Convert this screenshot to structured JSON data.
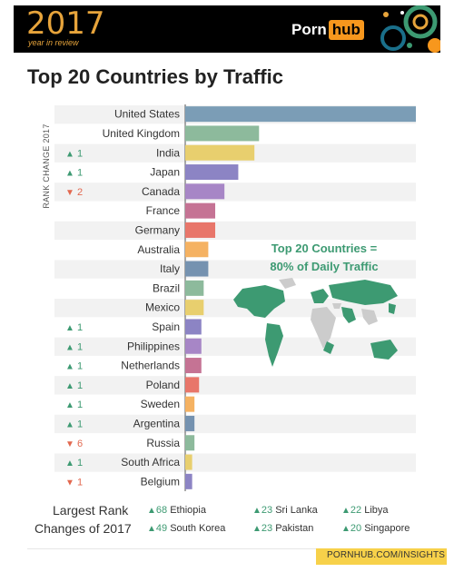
{
  "header": {
    "year": "2017",
    "subtitle": "year in review",
    "brand_left": "Porn",
    "brand_right": "hub",
    "brand_color": "#f7971d",
    "year_color": "#e7a43b",
    "deco_colors": [
      "#3d9a72",
      "#1a6f8a",
      "#e7a43b",
      "#f7971d"
    ]
  },
  "title": "Top 20 Countries by Traffic",
  "rank_axis_label": "RANK CHANGE 2017",
  "map_label": {
    "line1": "Top 20 Countries =",
    "line2": "80% of Daily Traffic",
    "map_color": "#3d9a72",
    "other_color": "#cccccc"
  },
  "chart_data": {
    "type": "bar",
    "orientation": "horizontal",
    "title": "Top 20 Countries by Traffic",
    "grid": false,
    "categories": [
      "United States",
      "United Kingdom",
      "India",
      "Japan",
      "Canada",
      "France",
      "Germany",
      "Australia",
      "Italy",
      "Brazil",
      "Mexico",
      "Spain",
      "Philippines",
      "Netherlands",
      "Poland",
      "Sweden",
      "Argentina",
      "Russia",
      "South Africa",
      "Belgium"
    ],
    "values": [
      100,
      32,
      30,
      23,
      17,
      13,
      13,
      10,
      10,
      8,
      8,
      7,
      7,
      7,
      6,
      4,
      4,
      4,
      3,
      3
    ],
    "colors": [
      "#7b9db6",
      "#8dba9c",
      "#e8cf6e",
      "#8c84c4",
      "#a786c6",
      "#c57394",
      "#e8766a",
      "#f5b262",
      "#7592b0",
      "#8dba9c",
      "#e8cf6e",
      "#8c84c4",
      "#a786c6",
      "#c57394",
      "#e8766a",
      "#f5b262",
      "#7592b0",
      "#8dba9c",
      "#e8cf6e",
      "#8c84c4"
    ],
    "rank_change": [
      "",
      "",
      "1",
      "1",
      "2",
      "",
      "",
      "",
      "",
      "",
      "",
      "1",
      "1",
      "1",
      "1",
      "1",
      "1",
      "6",
      "1",
      "1"
    ],
    "rank_direction": [
      "",
      "",
      "up",
      "up",
      "down",
      "",
      "",
      "",
      "",
      "",
      "",
      "up",
      "up",
      "up",
      "up",
      "up",
      "up",
      "down",
      "up",
      "down"
    ],
    "up_color": "#3d9a72",
    "down_color": "#e2684f"
  },
  "largest_rank": {
    "label_line1": "Largest Rank",
    "label_line2": "Changes of 2017",
    "items": [
      {
        "change": "68",
        "country": "Ethiopia"
      },
      {
        "change": "49",
        "country": "South Korea"
      },
      {
        "change": "23",
        "country": "Sri Lanka"
      },
      {
        "change": "23",
        "country": "Pakistan"
      },
      {
        "change": "22",
        "country": "Libya"
      },
      {
        "change": "20",
        "country": "Singapore"
      }
    ]
  },
  "footer": {
    "text": "PORNHUB.COM/INSIGHTS",
    "bar_color": "#f7d14a"
  }
}
